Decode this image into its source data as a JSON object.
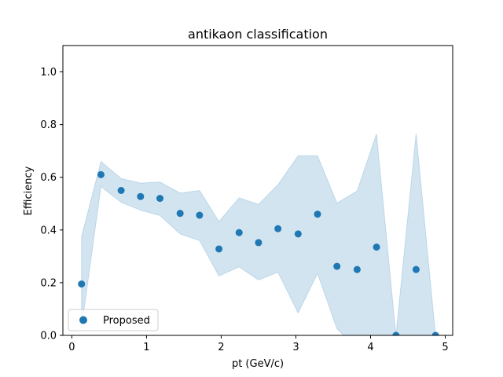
{
  "chart_data": {
    "type": "scatter",
    "title": "antikaon classification",
    "xlabel": "pt (GeV/c)",
    "ylabel": "Efficiency",
    "xlim": [
      -0.12,
      5.1
    ],
    "ylim": [
      0.0,
      1.1
    ],
    "xticks": [
      "0",
      "1",
      "2",
      "3",
      "4",
      "5"
    ],
    "xtick_values": [
      0,
      1,
      2,
      3,
      4,
      5
    ],
    "yticks": [
      "0.0",
      "0.2",
      "0.4",
      "0.6",
      "0.8",
      "1.0"
    ],
    "ytick_values": [
      0.0,
      0.2,
      0.4,
      0.6,
      0.8,
      1.0
    ],
    "grid": false,
    "legend_position": "lower-left",
    "colors": {
      "marker": "#1f77b4",
      "band": "#1f77b4"
    },
    "series": [
      {
        "name": "Proposed",
        "x": [
          0.13,
          0.39,
          0.66,
          0.92,
          1.18,
          1.45,
          1.71,
          1.97,
          2.24,
          2.5,
          2.76,
          3.03,
          3.29,
          3.55,
          3.82,
          4.08,
          4.34,
          4.61,
          4.87
        ],
        "y": [
          0.195,
          0.61,
          0.55,
          0.527,
          0.52,
          0.463,
          0.456,
          0.328,
          0.39,
          0.352,
          0.405,
          0.385,
          0.46,
          0.262,
          0.25,
          0.335,
          0.0,
          0.25,
          0.0
        ],
        "lower": [
          0.03,
          0.565,
          0.505,
          0.475,
          0.455,
          0.385,
          0.36,
          0.225,
          0.26,
          0.21,
          0.24,
          0.085,
          0.235,
          0.025,
          -0.05,
          0.0,
          0.0,
          0.0,
          0.0
        ],
        "upper": [
          0.375,
          0.66,
          0.595,
          0.578,
          0.582,
          0.54,
          0.55,
          0.432,
          0.522,
          0.497,
          0.572,
          0.682,
          0.682,
          0.502,
          0.548,
          0.765,
          0.0,
          0.765,
          0.0
        ]
      }
    ]
  }
}
